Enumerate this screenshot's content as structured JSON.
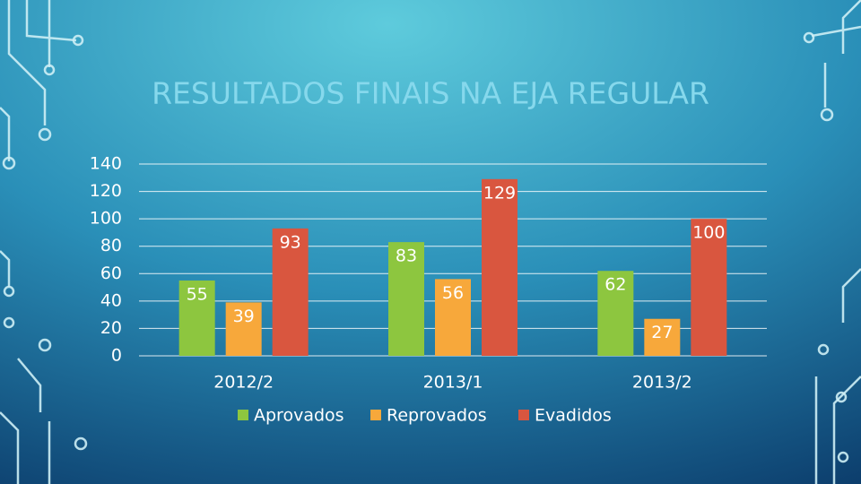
{
  "chart_data": {
    "type": "bar",
    "title": "RESULTADOS FINAIS NA EJA REGULAR",
    "categories": [
      "2012/2",
      "2013/1",
      "2013/2"
    ],
    "series": [
      {
        "name": "Aprovados",
        "color": "#8dc63f",
        "values": [
          55,
          83,
          62
        ]
      },
      {
        "name": "Reprovados",
        "color": "#f7a83b",
        "values": [
          39,
          56,
          27
        ]
      },
      {
        "name": "Evadidos",
        "color": "#d9563f",
        "values": [
          93,
          129,
          100
        ]
      }
    ],
    "ylim": [
      0,
      140
    ],
    "yticks": [
      0,
      20,
      40,
      60,
      80,
      100,
      120,
      140
    ],
    "grid": true,
    "legend": "bottom"
  }
}
